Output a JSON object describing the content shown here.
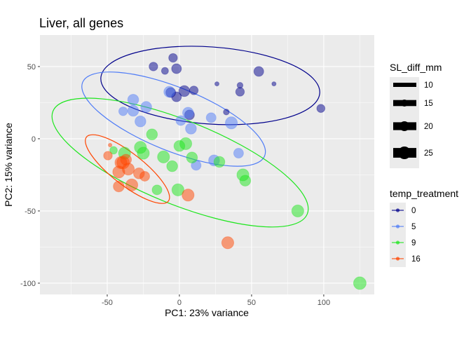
{
  "chart_data": {
    "type": "scatter",
    "title": "Liver, all genes",
    "xlabel": "PC1: 23% variance",
    "ylabel": "PC2: 15% variance",
    "xlim": [
      -96.6,
      135
    ],
    "ylim": [
      -107.8,
      71.8
    ],
    "xticks": [
      -50,
      0,
      50,
      100
    ],
    "yticks": [
      50,
      0,
      -50,
      -100
    ],
    "grid": true,
    "legend_position": "right",
    "size_legend": {
      "title": "SL_diff_mm",
      "values": [
        10,
        15,
        20,
        25
      ]
    },
    "color_legend": {
      "title": "temp_treatment"
    },
    "series": [
      {
        "name": "0",
        "color": "#00008B",
        "points": [
          [
            -18,
            50,
            18
          ],
          [
            -10,
            47,
            15
          ],
          [
            -4.4,
            56,
            18
          ],
          [
            -2,
            48.5,
            20
          ],
          [
            -6,
            32,
            20
          ],
          [
            -2,
            29,
            20
          ],
          [
            3.4,
            33,
            22
          ],
          [
            10,
            33.5,
            18
          ],
          [
            7,
            16.5,
            20
          ],
          [
            26,
            38,
            10
          ],
          [
            32.5,
            18.5,
            13
          ],
          [
            42,
            37,
            13
          ],
          [
            42,
            32.5,
            18
          ],
          [
            55,
            46.6,
            20
          ],
          [
            65.5,
            38,
            10
          ],
          [
            98,
            21,
            17
          ]
        ],
        "ellipse": {
          "cx": 21.4,
          "cy": 36.9,
          "a": 76,
          "b": 26.7,
          "angle": -4
        }
      },
      {
        "name": "5",
        "color": "#4F7CF7",
        "points": [
          [
            -32,
            27,
            22
          ],
          [
            -32,
            19.4,
            22
          ],
          [
            -39,
            19,
            18
          ],
          [
            -23,
            22,
            22
          ],
          [
            -27,
            12,
            22
          ],
          [
            -7,
            32.5,
            22
          ],
          [
            6,
            18,
            22
          ],
          [
            1,
            12.6,
            20
          ],
          [
            8,
            7,
            22
          ],
          [
            22,
            14.6,
            20
          ],
          [
            36,
            11,
            24
          ],
          [
            11.6,
            -18.4,
            20
          ],
          [
            24,
            -15,
            22
          ],
          [
            41,
            -10,
            20
          ]
        ],
        "ellipse": {
          "cx": -4,
          "cy": 13.6,
          "a": 68,
          "b": 22,
          "angle": -22
        }
      },
      {
        "name": "9",
        "color": "#1EE61E",
        "points": [
          [
            -19,
            3,
            22
          ],
          [
            -27,
            -6,
            24
          ],
          [
            -25,
            -10,
            24
          ],
          [
            -38,
            -10,
            24
          ],
          [
            -45.6,
            -8,
            16
          ],
          [
            -11,
            -12.6,
            24
          ],
          [
            -5,
            -19,
            22
          ],
          [
            0,
            -5,
            22
          ],
          [
            4.4,
            -3.4,
            24
          ],
          [
            8.7,
            -13,
            22
          ],
          [
            27.7,
            -16,
            22
          ],
          [
            44,
            -25,
            24
          ],
          [
            45.6,
            -29,
            22
          ],
          [
            -15.5,
            -35.4,
            20
          ],
          [
            -1,
            -35.4,
            24
          ],
          [
            82,
            -50,
            24
          ],
          [
            125,
            -100,
            25
          ]
        ],
        "ellipse": {
          "cx": 0.5,
          "cy": -16.5,
          "a": 95,
          "b": 29,
          "angle": -22
        }
      },
      {
        "name": "16",
        "color": "#FF4500",
        "points": [
          [
            -48,
            -4.4,
            9
          ],
          [
            -49.5,
            -11.7,
            18
          ],
          [
            -39,
            -16.5,
            25
          ],
          [
            -40.5,
            -16.5,
            24
          ],
          [
            -37,
            -14.5,
            22
          ],
          [
            -42,
            -23,
            24
          ],
          [
            -35.4,
            -21,
            24
          ],
          [
            -28,
            -24,
            22
          ],
          [
            -24,
            -26,
            20
          ],
          [
            -42,
            -33,
            22
          ],
          [
            -33,
            -32,
            24
          ],
          [
            6,
            -39,
            24
          ],
          [
            33.5,
            -72,
            24
          ]
        ],
        "ellipse": {
          "cx": -36,
          "cy": -21,
          "a": 36,
          "b": 11,
          "angle": -38
        }
      }
    ]
  }
}
